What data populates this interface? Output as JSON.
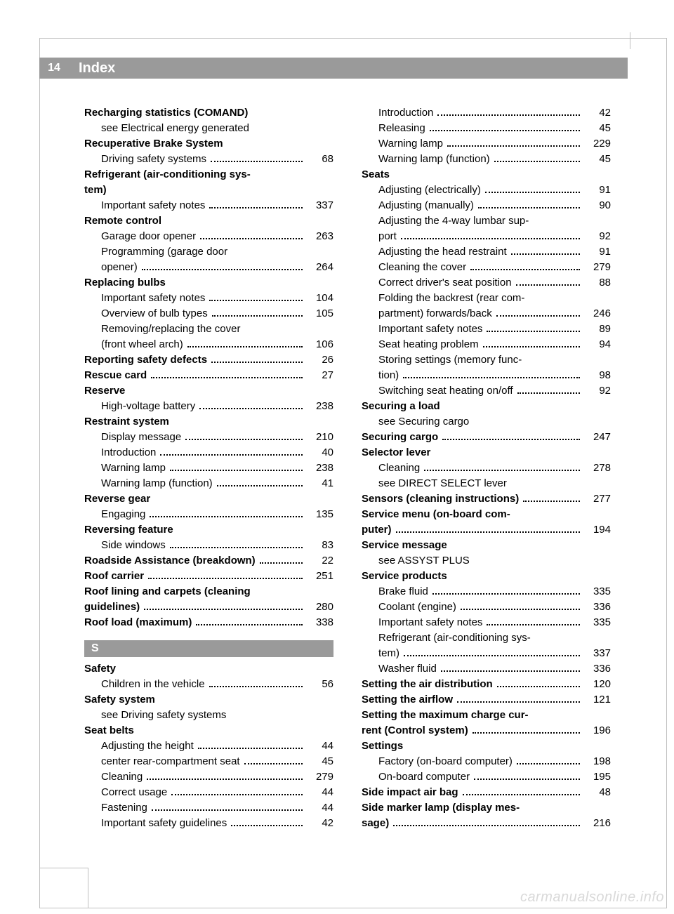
{
  "page_number": "14",
  "header_title": "Index",
  "watermark": "carmanualsonline.info",
  "section_letter": "S",
  "colors": {
    "bar_bg": "#9a9a9a",
    "bar_fg": "#ffffff",
    "text": "#000000",
    "frame": "#bfbfbf",
    "watermark": "#d9d9d9"
  },
  "left_column": [
    {
      "type": "head",
      "text": "Recharging statistics (COMAND)"
    },
    {
      "type": "sub_noref",
      "text": "see Electrical energy generated"
    },
    {
      "type": "head",
      "text": "Recuperative Brake System"
    },
    {
      "type": "sub",
      "text": "Driving safety systems",
      "page": "68"
    },
    {
      "type": "head_multi",
      "text": "Refrigerant (air-conditioning sys-"
    },
    {
      "type": "head_cont",
      "text": "tem)"
    },
    {
      "type": "sub",
      "text": "Important safety notes",
      "page": "337"
    },
    {
      "type": "head",
      "text": "Remote control"
    },
    {
      "type": "sub",
      "text": "Garage door opener",
      "page": "263"
    },
    {
      "type": "sub_multi",
      "text": "Programming (garage door"
    },
    {
      "type": "sub_cont",
      "text": "opener)",
      "page": "264"
    },
    {
      "type": "head",
      "text": "Replacing bulbs"
    },
    {
      "type": "sub",
      "text": "Important safety notes",
      "page": "104"
    },
    {
      "type": "sub",
      "text": "Overview of bulb types",
      "page": "105"
    },
    {
      "type": "sub_multi",
      "text": "Removing/replacing the cover"
    },
    {
      "type": "sub_cont",
      "text": "(front wheel arch)",
      "page": "106"
    },
    {
      "type": "head_ref",
      "text": "Reporting safety defects",
      "page": "26"
    },
    {
      "type": "head_ref",
      "text": "Rescue card",
      "page": "27"
    },
    {
      "type": "head",
      "text": "Reserve"
    },
    {
      "type": "sub",
      "text": "High-voltage battery",
      "page": "238"
    },
    {
      "type": "head",
      "text": "Restraint system"
    },
    {
      "type": "sub",
      "text": "Display message",
      "page": "210"
    },
    {
      "type": "sub",
      "text": "Introduction",
      "page": "40"
    },
    {
      "type": "sub",
      "text": "Warning lamp",
      "page": "238"
    },
    {
      "type": "sub",
      "text": "Warning lamp (function)",
      "page": "41"
    },
    {
      "type": "head",
      "text": "Reverse gear"
    },
    {
      "type": "sub",
      "text": "Engaging",
      "page": "135"
    },
    {
      "type": "head",
      "text": "Reversing feature"
    },
    {
      "type": "sub",
      "text": "Side windows",
      "page": "83"
    },
    {
      "type": "head_ref",
      "text": "Roadside Assistance (breakdown)",
      "page": "22"
    },
    {
      "type": "head_ref",
      "text": "Roof carrier",
      "page": "251"
    },
    {
      "type": "head_multi",
      "text": "Roof lining and carpets (cleaning"
    },
    {
      "type": "head_cont_ref",
      "text": "guidelines)",
      "page": "280"
    },
    {
      "type": "head_ref",
      "text": "Roof load (maximum)",
      "page": "338"
    },
    {
      "type": "letter",
      "text": "S"
    },
    {
      "type": "head",
      "text": "Safety"
    },
    {
      "type": "sub",
      "text": "Children in the vehicle",
      "page": "56"
    },
    {
      "type": "head",
      "text": "Safety system"
    },
    {
      "type": "sub_noref",
      "text": "see Driving safety systems"
    },
    {
      "type": "head",
      "text": "Seat belts"
    },
    {
      "type": "sub",
      "text": "Adjusting the height",
      "page": "44"
    },
    {
      "type": "sub",
      "text": "center rear-compartment seat",
      "page": "45"
    },
    {
      "type": "sub",
      "text": "Cleaning",
      "page": "279"
    },
    {
      "type": "sub",
      "text": "Correct usage",
      "page": "44"
    },
    {
      "type": "sub",
      "text": "Fastening",
      "page": "44"
    },
    {
      "type": "sub",
      "text": "Important safety guidelines",
      "page": "42"
    }
  ],
  "right_column": [
    {
      "type": "sub",
      "text": "Introduction",
      "page": "42"
    },
    {
      "type": "sub",
      "text": "Releasing",
      "page": "45"
    },
    {
      "type": "sub",
      "text": "Warning lamp",
      "page": "229"
    },
    {
      "type": "sub",
      "text": "Warning lamp (function)",
      "page": "45"
    },
    {
      "type": "head",
      "text": "Seats"
    },
    {
      "type": "sub",
      "text": "Adjusting (electrically)",
      "page": "91"
    },
    {
      "type": "sub",
      "text": "Adjusting (manually)",
      "page": "90"
    },
    {
      "type": "sub_multi",
      "text": "Adjusting the 4-way lumbar sup-"
    },
    {
      "type": "sub_cont",
      "text": "port",
      "page": "92"
    },
    {
      "type": "sub",
      "text": "Adjusting the head restraint",
      "page": "91"
    },
    {
      "type": "sub",
      "text": "Cleaning the cover",
      "page": "279"
    },
    {
      "type": "sub",
      "text": "Correct driver's seat position",
      "page": "88"
    },
    {
      "type": "sub_multi",
      "text": "Folding the backrest (rear com-"
    },
    {
      "type": "sub_cont",
      "text": "partment) forwards/back",
      "page": "246"
    },
    {
      "type": "sub",
      "text": "Important safety notes",
      "page": "89"
    },
    {
      "type": "sub",
      "text": "Seat heating problem",
      "page": "94"
    },
    {
      "type": "sub_multi",
      "text": "Storing settings (memory func-"
    },
    {
      "type": "sub_cont",
      "text": "tion)",
      "page": "98"
    },
    {
      "type": "sub",
      "text": "Switching seat heating on/off",
      "page": "92"
    },
    {
      "type": "head",
      "text": "Securing a load"
    },
    {
      "type": "sub_noref",
      "text": "see Securing cargo"
    },
    {
      "type": "head_ref",
      "text": "Securing cargo",
      "page": "247"
    },
    {
      "type": "head",
      "text": "Selector lever"
    },
    {
      "type": "sub",
      "text": "Cleaning",
      "page": "278"
    },
    {
      "type": "sub_noref",
      "text": "see DIRECT SELECT lever"
    },
    {
      "type": "head_ref",
      "text": "Sensors (cleaning instructions)",
      "page": "277"
    },
    {
      "type": "head_multi",
      "text": "Service menu (on-board com-"
    },
    {
      "type": "head_cont_ref",
      "text": "puter)",
      "page": "194"
    },
    {
      "type": "head",
      "text": "Service message"
    },
    {
      "type": "sub_noref",
      "text": "see ASSYST PLUS"
    },
    {
      "type": "head",
      "text": "Service products"
    },
    {
      "type": "sub",
      "text": "Brake fluid",
      "page": "335"
    },
    {
      "type": "sub",
      "text": "Coolant (engine)",
      "page": "336"
    },
    {
      "type": "sub",
      "text": "Important safety notes",
      "page": "335"
    },
    {
      "type": "sub_multi",
      "text": "Refrigerant (air-conditioning sys-"
    },
    {
      "type": "sub_cont",
      "text": "tem)",
      "page": "337"
    },
    {
      "type": "sub",
      "text": "Washer fluid",
      "page": "336"
    },
    {
      "type": "head_ref",
      "text": "Setting the air distribution",
      "page": "120"
    },
    {
      "type": "head_ref",
      "text": "Setting the airflow",
      "page": "121"
    },
    {
      "type": "head_multi",
      "text": "Setting the maximum charge cur-"
    },
    {
      "type": "head_cont_ref",
      "text": "rent (Control system)",
      "page": "196"
    },
    {
      "type": "head",
      "text": "Settings"
    },
    {
      "type": "sub",
      "text": "Factory (on-board computer)",
      "page": "198"
    },
    {
      "type": "sub",
      "text": "On-board computer",
      "page": "195"
    },
    {
      "type": "head_ref",
      "text": "Side impact air bag",
      "page": "48"
    },
    {
      "type": "head_multi",
      "text": "Side marker lamp (display mes-"
    },
    {
      "type": "head_cont_ref",
      "text": "sage)",
      "page": "216"
    }
  ]
}
